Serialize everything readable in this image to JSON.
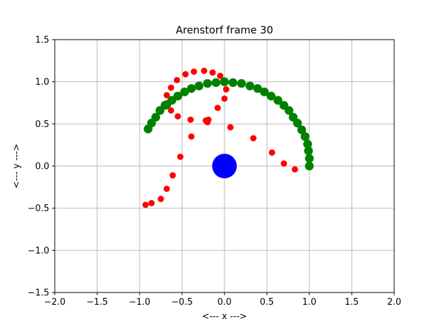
{
  "chart_data": {
    "type": "scatter",
    "title": "Arenstorf frame 30",
    "xlabel": "<---  x  --->",
    "ylabel": "<---  y  --->",
    "xlim": [
      -2.0,
      2.0
    ],
    "ylim": [
      -1.5,
      1.5
    ],
    "grid": true,
    "x_ticks": [
      -2.0,
      -1.5,
      -1.0,
      -0.5,
      0.0,
      0.5,
      1.0,
      1.5,
      2.0
    ],
    "x_tick_labels": [
      "−2.0",
      "−1.5",
      "−1.0",
      "−0.5",
      "0.0",
      "0.5",
      "1.0",
      "1.5",
      "2.0"
    ],
    "y_ticks": [
      -1.5,
      -1.0,
      -0.5,
      0.0,
      0.5,
      1.0,
      1.5
    ],
    "y_tick_labels": [
      "−1.5",
      "−1.0",
      "−0.5",
      "0.0",
      "0.5",
      "1.0",
      "1.5"
    ],
    "series": [
      {
        "color": "#ff0000",
        "marker_size": "small",
        "points": [
          [
            1.0,
            0.0
          ],
          [
            0.83,
            -0.04
          ],
          [
            0.7,
            0.03
          ],
          [
            0.56,
            0.16
          ],
          [
            0.34,
            0.33
          ],
          [
            0.07,
            0.46
          ],
          [
            -0.2,
            0.52
          ],
          [
            -0.22,
            0.54
          ],
          [
            -0.4,
            0.55
          ],
          [
            -0.55,
            0.59
          ],
          [
            -0.63,
            0.66
          ],
          [
            -0.68,
            0.73
          ],
          [
            -0.68,
            0.84
          ],
          [
            -0.63,
            0.93
          ],
          [
            -0.56,
            1.02
          ],
          [
            -0.46,
            1.09
          ],
          [
            -0.36,
            1.12
          ],
          [
            -0.24,
            1.13
          ],
          [
            -0.14,
            1.11
          ],
          [
            -0.05,
            1.07
          ],
          [
            0.01,
            1.0
          ],
          [
            0.02,
            0.91
          ],
          [
            0.0,
            0.8
          ],
          [
            -0.08,
            0.69
          ],
          [
            -0.19,
            0.55
          ],
          [
            -0.39,
            0.35
          ],
          [
            -0.52,
            0.11
          ],
          [
            -0.61,
            -0.11
          ],
          [
            -0.68,
            -0.27
          ],
          [
            -0.75,
            -0.39
          ],
          [
            -0.86,
            -0.44
          ],
          [
            -0.93,
            -0.46
          ]
        ]
      },
      {
        "color": "#008000",
        "marker_size": "large",
        "points": [
          [
            1.0,
            0.0
          ],
          [
            1.0,
            0.09
          ],
          [
            0.99,
            0.18
          ],
          [
            0.98,
            0.26
          ],
          [
            0.95,
            0.35
          ],
          [
            0.91,
            0.43
          ],
          [
            0.86,
            0.51
          ],
          [
            0.81,
            0.58
          ],
          [
            0.76,
            0.66
          ],
          [
            0.7,
            0.72
          ],
          [
            0.63,
            0.78
          ],
          [
            0.55,
            0.83
          ],
          [
            0.47,
            0.88
          ],
          [
            0.39,
            0.92
          ],
          [
            0.3,
            0.95
          ],
          [
            0.2,
            0.98
          ],
          [
            0.1,
            0.99
          ],
          [
            0.0,
            1.0
          ],
          [
            -0.1,
            0.99
          ],
          [
            -0.2,
            0.98
          ],
          [
            -0.3,
            0.95
          ],
          [
            -0.39,
            0.92
          ],
          [
            -0.47,
            0.88
          ],
          [
            -0.55,
            0.83
          ],
          [
            -0.62,
            0.78
          ],
          [
            -0.68,
            0.73
          ],
          [
            -0.7,
            0.72
          ],
          [
            -0.76,
            0.66
          ],
          [
            -0.81,
            0.58
          ],
          [
            -0.86,
            0.51
          ],
          [
            -0.9,
            0.44
          ]
        ]
      },
      {
        "color": "#0000ff",
        "marker_size": "huge",
        "points": [
          [
            0.0,
            0.0
          ]
        ]
      }
    ]
  }
}
